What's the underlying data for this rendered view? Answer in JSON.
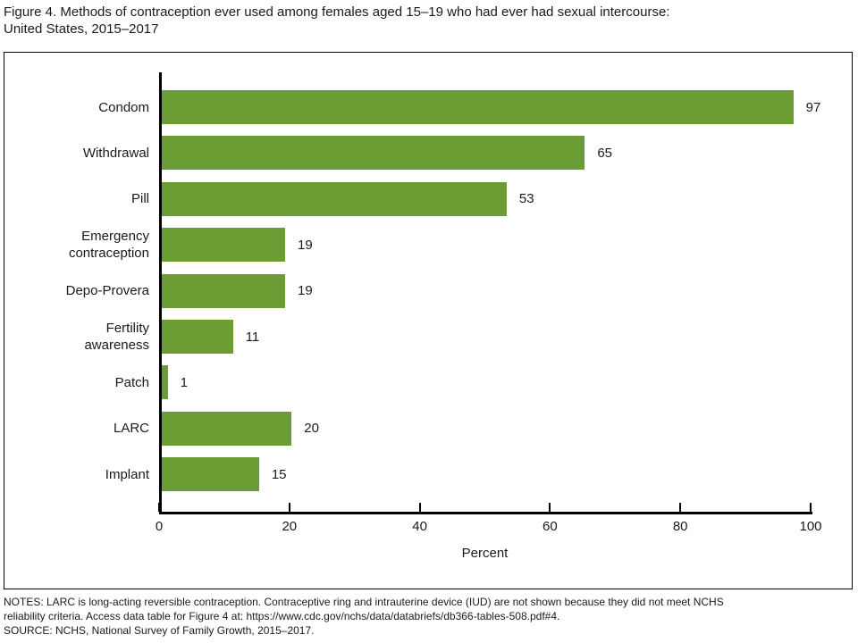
{
  "title": {
    "line1": "Figure 4. Methods of contraception ever used among females aged 15–19 who had ever had sexual intercourse:",
    "line2": "United States, 2015–2017"
  },
  "chart_data": {
    "type": "bar",
    "orientation": "horizontal",
    "title": "Figure 4. Methods of contraception ever used among females aged 15–19 who had ever had sexual intercourse: United States, 2015–2017",
    "categories": [
      "Condom",
      "Withdrawal",
      "Pill",
      "Emergency\ncontraception",
      "Depo-Provera",
      "Fertility\nawareness",
      "Patch",
      "LARC",
      "Implant"
    ],
    "values": [
      97,
      65,
      53,
      19,
      19,
      11,
      1,
      20,
      15
    ],
    "xlabel": "Percent",
    "xticks": [
      0,
      20,
      40,
      60,
      80,
      100
    ],
    "xlim": [
      0,
      100
    ],
    "bar_color": "#6C9C34",
    "axis_color": "#000000",
    "grid": false,
    "value_labels": true,
    "legend": "none"
  },
  "notes": {
    "line1": "NOTES: LARC is long-acting reversible contraception. Contraceptive ring and intrauterine device (IUD) are not shown because they did not meet NCHS",
    "line2": "reliability criteria. Access data table for Figure 4 at: https://www.cdc.gov/nchs/data/databriefs/db366-tables-508.pdf#4.",
    "line3": "SOURCE: NCHS, National Survey of Family Growth, 2015–2017."
  }
}
